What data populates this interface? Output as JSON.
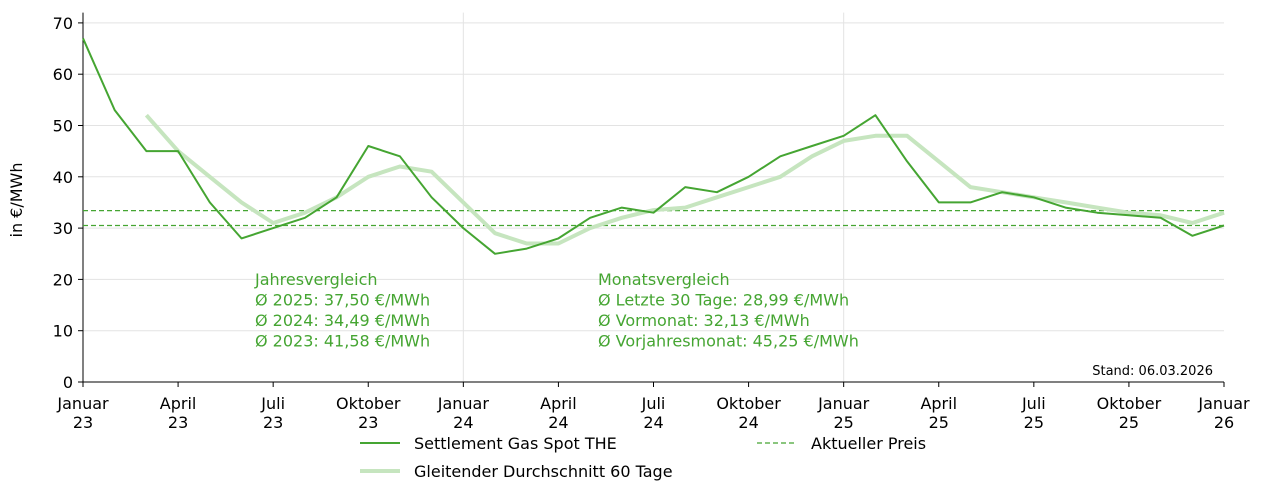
{
  "chart_data": {
    "type": "line",
    "ylabel": "in €/MWh",
    "x": [
      "2023-01",
      "2023-02",
      "2023-03",
      "2023-04",
      "2023-05",
      "2023-06",
      "2023-07",
      "2023-08",
      "2023-09",
      "2023-10",
      "2023-11",
      "2023-12",
      "2024-01",
      "2024-02",
      "2024-03",
      "2024-04",
      "2024-05",
      "2024-06",
      "2024-07",
      "2024-08",
      "2024-09",
      "2024-10",
      "2024-11",
      "2024-12",
      "2025-01",
      "2025-02",
      "2025-03",
      "2025-04",
      "2025-05",
      "2025-06",
      "2025-07",
      "2025-08",
      "2025-09",
      "2025-10",
      "2025-11",
      "2025-12",
      "2026-01"
    ],
    "series": [
      {
        "name": "Settlement Gas Spot THE",
        "color": "#45a532",
        "width": 2,
        "values": [
          67,
          53,
          45,
          45,
          35,
          28,
          30,
          32,
          36,
          46,
          44,
          36,
          30,
          25,
          26,
          28,
          32,
          34,
          33,
          38,
          37,
          40,
          44,
          46,
          48,
          52,
          43,
          35,
          35,
          37,
          36,
          34,
          33,
          32.5,
          32,
          28.5,
          30.5
        ]
      },
      {
        "name": "Gleitender Durchschnitt 60 Tage",
        "color": "#c6e5bf",
        "width": 4,
        "values": [
          null,
          null,
          52,
          45,
          40,
          35,
          31,
          33,
          36,
          40,
          42,
          41,
          35,
          29,
          27,
          27,
          30,
          32,
          33.5,
          34,
          36,
          38,
          40,
          44,
          47,
          48,
          48,
          43,
          38,
          37,
          36,
          35,
          34,
          33,
          32.5,
          31,
          33
        ]
      }
    ],
    "reference_lines": {
      "name": "Aktueller Preis",
      "color": "#45a532",
      "values": [
        33.4,
        30.5
      ]
    },
    "xlim": [
      "2023-01",
      "2026-01"
    ],
    "xticks": [
      {
        "value": "2023-01",
        "label": "Januar\n23"
      },
      {
        "value": "2023-04",
        "label": "April\n23"
      },
      {
        "value": "2023-07",
        "label": "Juli\n23"
      },
      {
        "value": "2023-10",
        "label": "Oktober\n23"
      },
      {
        "value": "2024-01",
        "label": "Januar\n24"
      },
      {
        "value": "2024-04",
        "label": "April\n24"
      },
      {
        "value": "2024-07",
        "label": "Juli\n24"
      },
      {
        "value": "2024-10",
        "label": "Oktober\n24"
      },
      {
        "value": "2025-01",
        "label": "Januar\n25"
      },
      {
        "value": "2025-04",
        "label": "April\n25"
      },
      {
        "value": "2025-07",
        "label": "Juli\n25"
      },
      {
        "value": "2025-10",
        "label": "Oktober\n25"
      },
      {
        "value": "2026-01",
        "label": "Januar\n26"
      }
    ],
    "x_gridlines": [
      "2024-01",
      "2025-01"
    ],
    "ylim": [
      0,
      72
    ],
    "yticks": [
      0,
      10,
      20,
      30,
      40,
      50,
      60,
      70
    ],
    "grid": true,
    "annotations": [
      [
        "Jahresvergleich",
        "Ø 2025: 37,50 €/MWh",
        "Ø 2024: 34,49 €/MWh",
        "Ø 2023: 41,58 €/MWh"
      ],
      [
        "Monatsvergleich",
        "Ø Letzte 30 Tage: 28,99 €/MWh",
        "Ø Vormonat: 32,13 €/MWh",
        "Ø Vorjahresmonat: 45,25 €/MWh"
      ]
    ],
    "note": "Stand: 06.03.2026"
  }
}
